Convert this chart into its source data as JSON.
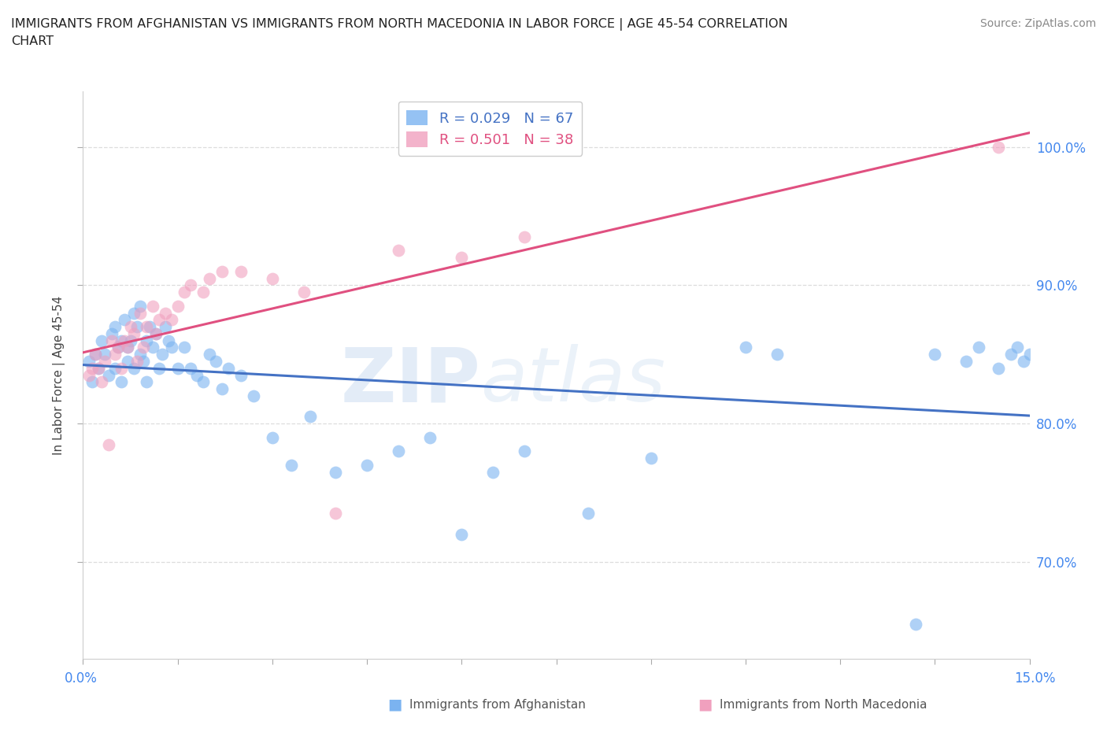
{
  "title_line1": "IMMIGRANTS FROM AFGHANISTAN VS IMMIGRANTS FROM NORTH MACEDONIA IN LABOR FORCE | AGE 45-54 CORRELATION",
  "title_line2": "CHART",
  "source_text": "Source: ZipAtlas.com",
  "ylabel": "In Labor Force | Age 45-54",
  "xlim": [
    0.0,
    15.0
  ],
  "ylim": [
    63.0,
    104.0
  ],
  "yticks": [
    70.0,
    80.0,
    90.0,
    100.0
  ],
  "right_ytick_labels": [
    "70.0%",
    "80.0%",
    "90.0%",
    "100.0%"
  ],
  "color_afghanistan": "#7bb3f0",
  "color_north_macedonia": "#f0a0be",
  "color_line_afghanistan": "#4472c4",
  "color_line_north_macedonia": "#e05080",
  "afghanistan_x": [
    0.1,
    0.15,
    0.2,
    0.25,
    0.3,
    0.35,
    0.4,
    0.45,
    0.5,
    0.5,
    0.55,
    0.6,
    0.6,
    0.65,
    0.7,
    0.7,
    0.75,
    0.8,
    0.8,
    0.85,
    0.9,
    0.9,
    0.95,
    1.0,
    1.0,
    1.05,
    1.1,
    1.15,
    1.2,
    1.25,
    1.3,
    1.35,
    1.4,
    1.5,
    1.6,
    1.7,
    1.8,
    1.9,
    2.0,
    2.1,
    2.2,
    2.3,
    2.5,
    2.7,
    3.0,
    3.3,
    3.6,
    4.0,
    4.5,
    5.0,
    5.5,
    6.0,
    6.5,
    7.0,
    8.0,
    9.0,
    10.5,
    11.0,
    13.5,
    14.0,
    14.2,
    14.5,
    14.7,
    14.8,
    14.9,
    15.0,
    13.2
  ],
  "afghanistan_y": [
    84.5,
    83.0,
    85.0,
    84.0,
    86.0,
    85.0,
    83.5,
    86.5,
    84.0,
    87.0,
    85.5,
    83.0,
    86.0,
    87.5,
    84.5,
    85.5,
    86.0,
    88.0,
    84.0,
    87.0,
    85.0,
    88.5,
    84.5,
    86.0,
    83.0,
    87.0,
    85.5,
    86.5,
    84.0,
    85.0,
    87.0,
    86.0,
    85.5,
    84.0,
    85.5,
    84.0,
    83.5,
    83.0,
    85.0,
    84.5,
    82.5,
    84.0,
    83.5,
    82.0,
    79.0,
    77.0,
    80.5,
    76.5,
    77.0,
    78.0,
    79.0,
    72.0,
    76.5,
    78.0,
    73.5,
    77.5,
    85.5,
    85.0,
    85.0,
    84.5,
    85.5,
    84.0,
    85.0,
    85.5,
    84.5,
    85.0,
    65.5
  ],
  "north_macedonia_x": [
    0.1,
    0.15,
    0.2,
    0.3,
    0.35,
    0.4,
    0.5,
    0.55,
    0.6,
    0.65,
    0.7,
    0.75,
    0.8,
    0.85,
    0.9,
    0.95,
    1.0,
    1.1,
    1.2,
    1.3,
    1.4,
    1.5,
    1.6,
    1.7,
    1.9,
    2.0,
    2.2,
    2.5,
    3.0,
    3.5,
    4.0,
    5.0,
    6.0,
    7.0,
    14.5,
    0.25,
    0.45,
    1.15
  ],
  "north_macedonia_y": [
    83.5,
    84.0,
    85.0,
    83.0,
    84.5,
    78.5,
    85.0,
    85.5,
    84.0,
    86.0,
    85.5,
    87.0,
    86.5,
    84.5,
    88.0,
    85.5,
    87.0,
    88.5,
    87.5,
    88.0,
    87.5,
    88.5,
    89.5,
    90.0,
    89.5,
    90.5,
    91.0,
    91.0,
    90.5,
    89.5,
    73.5,
    92.5,
    92.0,
    93.5,
    100.0,
    84.0,
    86.0,
    86.5
  ],
  "watermark_text": "ZIP",
  "watermark_text2": "atlas",
  "grid_color": "#dddddd",
  "background_color": "#ffffff"
}
